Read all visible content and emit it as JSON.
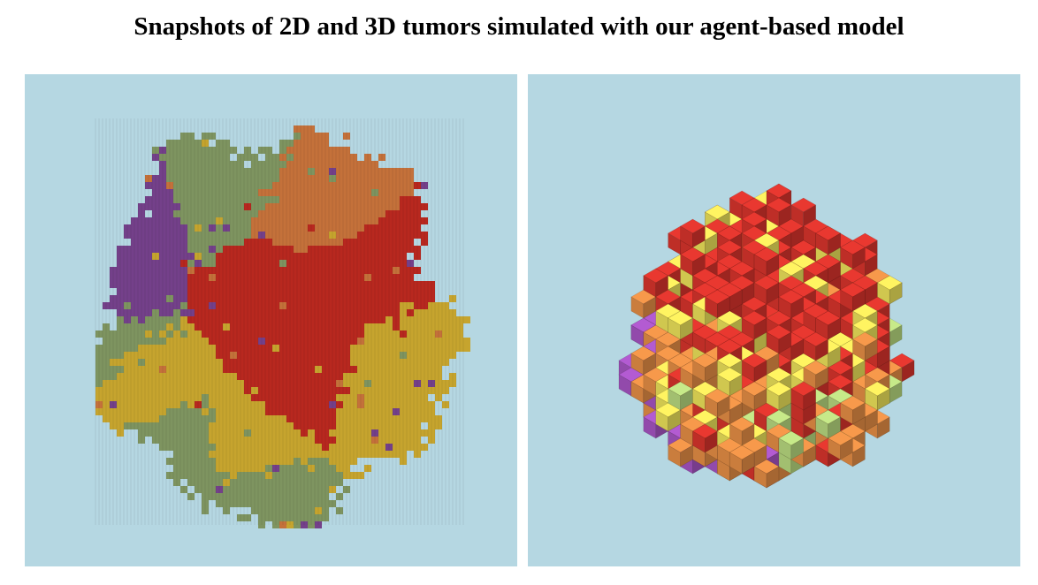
{
  "title": "Snapshots of 2D and 3D tumors simulated with our agent-based model",
  "panels": [
    {
      "id": "2d",
      "background": "#b5d7e2"
    },
    {
      "id": "3d",
      "background": "#b5d7e2"
    }
  ],
  "palette_2d": {
    "purple": "#74408a",
    "green": "#7e9460",
    "orange": "#c4713a",
    "red": "#b8281f",
    "yellow": "#c6a42e"
  },
  "palette_3d": {
    "red": "#d8342c",
    "yellow": "#ece25a",
    "orange": "#e58e45",
    "green": "#b8d97f",
    "purple": "#a654c2"
  }
}
